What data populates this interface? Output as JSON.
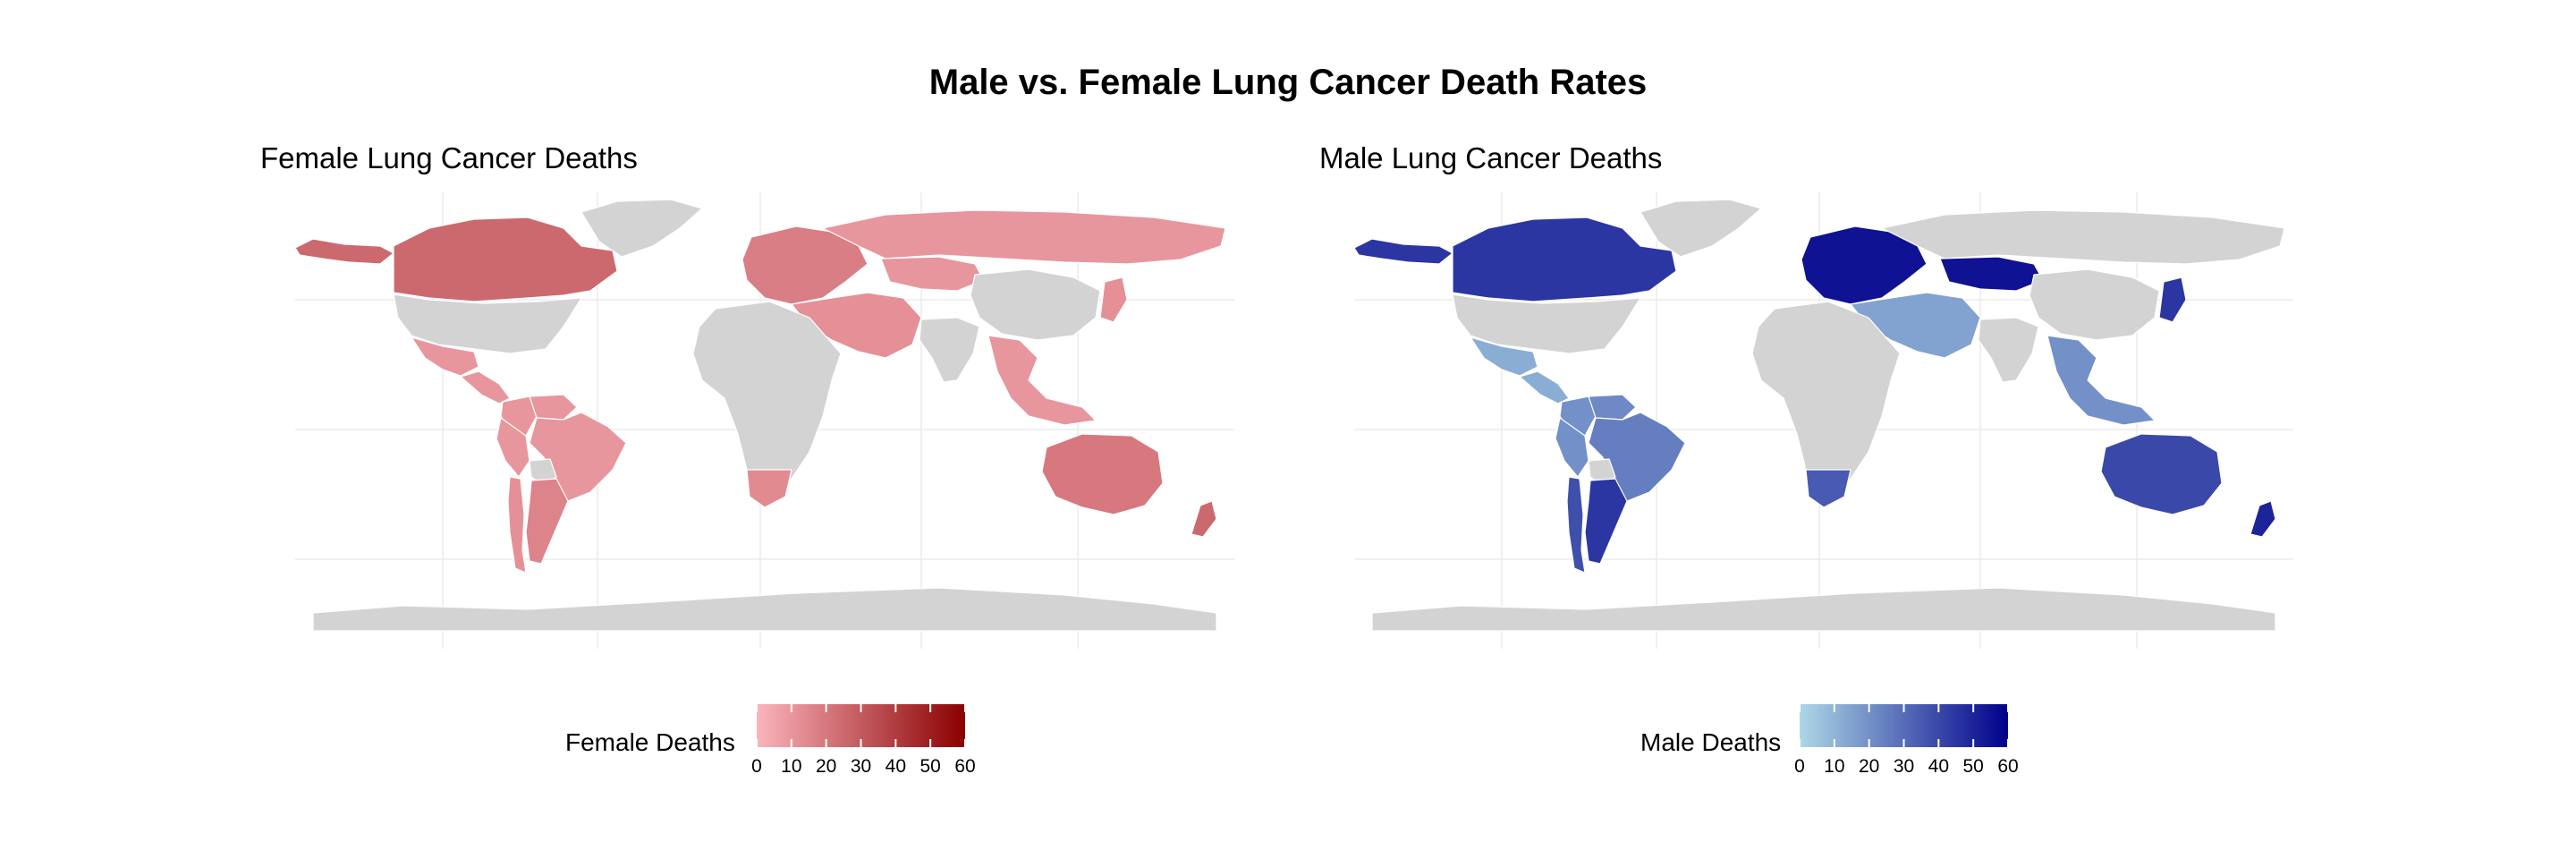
{
  "title": "Male vs. Female Lung Cancer Death Rates",
  "chart_data": [
    {
      "type": "choropleth",
      "panel_title": "Female Lung Cancer Deaths",
      "legend": {
        "title": "Female Deaths",
        "ticks": [
          "0",
          "10",
          "20",
          "30",
          "40",
          "50",
          "60"
        ],
        "range": [
          0,
          60
        ],
        "color_low": "#FBB4BC",
        "color_high": "#8B0000"
      },
      "no_data_color": "#D3D3D3",
      "regions": [
        {
          "name": "Canada",
          "value": 25
        },
        {
          "name": "Alaska",
          "value": 25
        },
        {
          "name": "Greenland",
          "value": null
        },
        {
          "name": "United States",
          "value": null
        },
        {
          "name": "Mexico",
          "value": 10
        },
        {
          "name": "Central America",
          "value": 10
        },
        {
          "name": "Colombia",
          "value": 10
        },
        {
          "name": "Venezuela",
          "value": 10
        },
        {
          "name": "Brazil",
          "value": 10
        },
        {
          "name": "Peru",
          "value": 10
        },
        {
          "name": "Bolivia",
          "value": null
        },
        {
          "name": "Argentina",
          "value": 16
        },
        {
          "name": "Chile",
          "value": 12
        },
        {
          "name": "Europe",
          "value": 18
        },
        {
          "name": "Russia",
          "value": 10
        },
        {
          "name": "Kazakhstan",
          "value": 10
        },
        {
          "name": "Middle East",
          "value": 12
        },
        {
          "name": "Africa",
          "value": null
        },
        {
          "name": "South Africa",
          "value": 14
        },
        {
          "name": "China",
          "value": null
        },
        {
          "name": "India",
          "value": null
        },
        {
          "name": "Southeast Asia",
          "value": 10
        },
        {
          "name": "Japan",
          "value": 12
        },
        {
          "name": "Australia",
          "value": 20
        },
        {
          "name": "New Zealand",
          "value": 25
        },
        {
          "name": "Antarctica",
          "value": null
        }
      ]
    },
    {
      "type": "choropleth",
      "panel_title": "Male Lung Cancer Deaths",
      "legend": {
        "title": "Male Deaths",
        "ticks": [
          "0",
          "10",
          "20",
          "30",
          "40",
          "50",
          "60"
        ],
        "range": [
          0,
          60
        ],
        "color_low": "#ADD8E6",
        "color_high": "#00008B"
      },
      "no_data_color": "#D3D3D3",
      "regions": [
        {
          "name": "Canada",
          "value": 45
        },
        {
          "name": "Alaska",
          "value": 45
        },
        {
          "name": "Greenland",
          "value": null
        },
        {
          "name": "United States",
          "value": null
        },
        {
          "name": "Mexico",
          "value": 12
        },
        {
          "name": "Central America",
          "value": 12
        },
        {
          "name": "Colombia",
          "value": 20
        },
        {
          "name": "Venezuela",
          "value": 22
        },
        {
          "name": "Brazil",
          "value": 25
        },
        {
          "name": "Peru",
          "value": 20
        },
        {
          "name": "Bolivia",
          "value": null
        },
        {
          "name": "Argentina",
          "value": 45
        },
        {
          "name": "Chile",
          "value": 38
        },
        {
          "name": "Europe",
          "value": 55
        },
        {
          "name": "Russia",
          "value": null
        },
        {
          "name": "Kazakhstan",
          "value": 55
        },
        {
          "name": "Middle East",
          "value": 15
        },
        {
          "name": "Africa",
          "value": null
        },
        {
          "name": "South Africa",
          "value": 35
        },
        {
          "name": "China",
          "value": null
        },
        {
          "name": "India",
          "value": null
        },
        {
          "name": "Southeast Asia",
          "value": 20
        },
        {
          "name": "Japan",
          "value": 45
        },
        {
          "name": "Australia",
          "value": 40
        },
        {
          "name": "New Zealand",
          "value": 50
        },
        {
          "name": "Antarctica",
          "value": null
        }
      ]
    }
  ]
}
